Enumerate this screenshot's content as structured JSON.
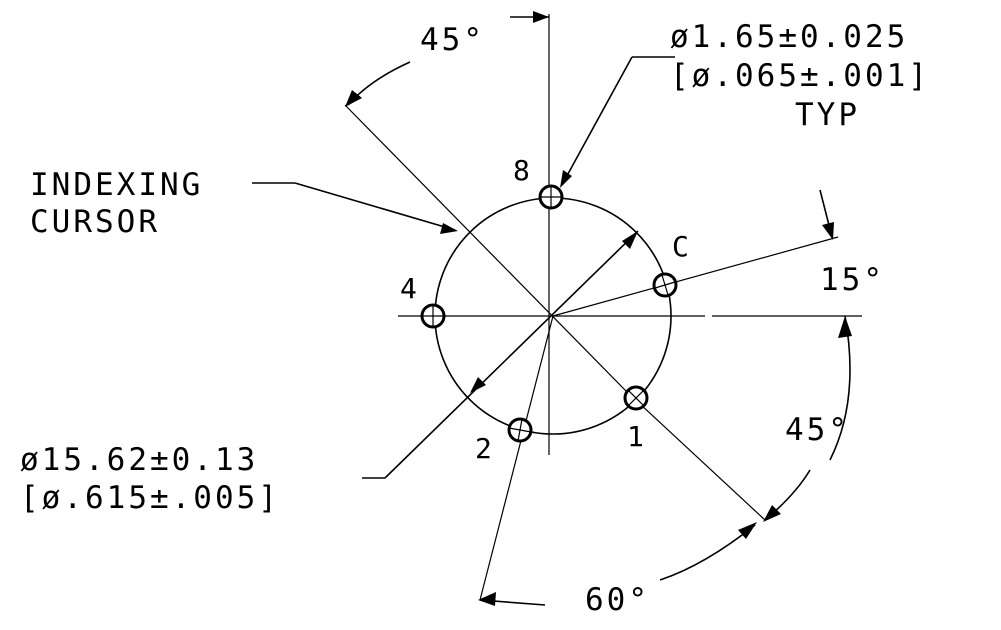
{
  "bolt_circle": {
    "diameter_metric": "ø15.62±0.13",
    "diameter_inch": "[ø.615±.005]"
  },
  "hole_callout": {
    "diameter_metric": "ø1.65±0.025",
    "diameter_inch": "[ø.065±.001]",
    "note": "TYP"
  },
  "cursor_label": {
    "line1": "INDEXING",
    "line2": "CURSOR"
  },
  "angles": {
    "top": "45°",
    "right_small": "15°",
    "right_lower": "45°",
    "bottom": "60°"
  },
  "hole_labels": {
    "h8": "8",
    "hc": "C",
    "h4": "4",
    "h2": "2",
    "h1": "1"
  }
}
